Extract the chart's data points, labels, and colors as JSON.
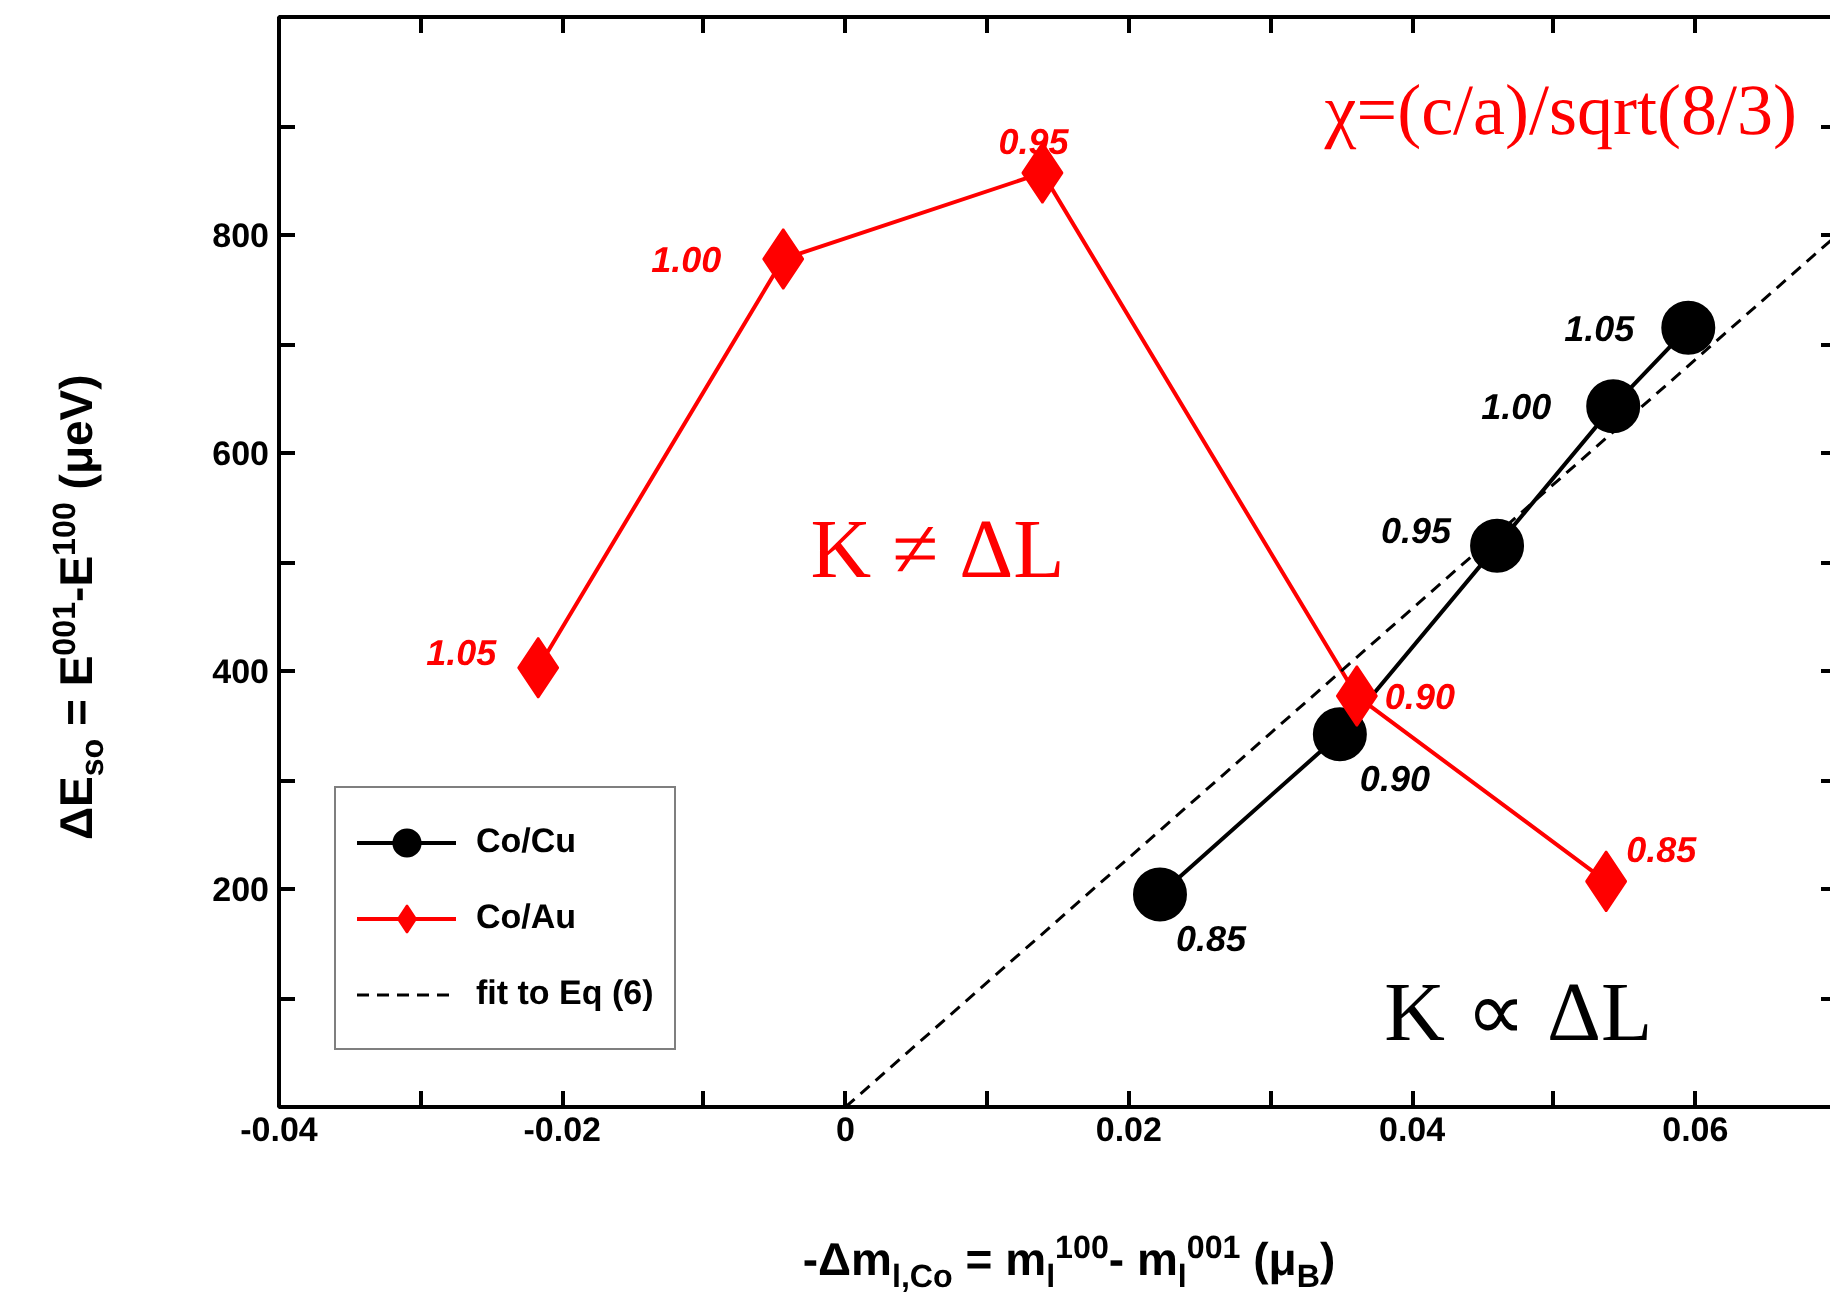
{
  "chart_data": {
    "type": "line",
    "xlabel": "-Δm$_{l,Co}$ = m$_{l}$$^{100}$- m$_{l}$$^{001}$ (μ$_{B}$)",
    "ylabel": "ΔE$_{so}$ = E$^{001}$-E$^{100}$ (μeV)",
    "xlim": [
      -0.04,
      0.07
    ],
    "xticks": [
      -0.04,
      {
        "value": -0.03,
        "label": null
      },
      -0.02,
      {
        "value": -0.01,
        "label": null
      },
      0,
      {
        "value": 0.01,
        "label": null
      },
      0.02,
      {
        "value": 0.03,
        "label": null
      },
      0.04,
      {
        "value": 0.05,
        "label": null
      },
      0.06
    ],
    "ylim": [
      0,
      1000
    ],
    "yticks": [
      {
        "value": 100,
        "label": null
      },
      200,
      {
        "value": 300,
        "label": null
      },
      400,
      {
        "value": 500,
        "label": null
      },
      600,
      {
        "value": 700,
        "label": null
      },
      800,
      {
        "value": 900,
        "label": null
      }
    ],
    "grid": false,
    "legend": "bottom left",
    "series": [
      {
        "name": "Co/Cu",
        "color": "#000000",
        "marker": "circle",
        "line_style": "solid",
        "x": [
          0.0222,
          0.0349,
          0.046,
          0.0542,
          0.0595
        ],
        "values": [
          195,
          342,
          515,
          643,
          715
        ]
      },
      {
        "name": "Co/Au",
        "color": "#ff0000",
        "marker": "diamond",
        "line_style": "solid",
        "x": [
          -0.0217,
          -0.0044,
          0.0139,
          0.0361,
          0.0537
        ],
        "values": [
          403,
          778,
          857,
          377,
          207
        ]
      },
      {
        "name": "fit to Eq (6)",
        "color": "#000000",
        "marker": "none",
        "line_style": "dashed",
        "x": [
          0,
          0.07
        ],
        "values": [
          0,
          800
        ]
      }
    ],
    "annotations": [
      "χ=(c/a)/sqrt(8/3)",
      "K ≠ ΔL",
      "K ∝ ΔL",
      {
        "text": "0.85",
        "x": 0.0222,
        "y": 195
      },
      {
        "text": "0.90",
        "x": 0.0349,
        "y": 342
      },
      {
        "text": "0.95",
        "x": 0.046,
        "y": 515
      },
      {
        "text": "1.00",
        "x": 0.0542,
        "y": 643
      },
      {
        "text": "1.05",
        "x": 0.0595,
        "y": 715
      },
      {
        "text": "1.05",
        "x": -0.0217,
        "y": 403
      },
      {
        "text": "1.00",
        "x": -0.0044,
        "y": 778
      },
      {
        "text": "0.95",
        "x": 0.0139,
        "y": 857
      },
      {
        "text": "0.90",
        "x": 0.0361,
        "y": 377
      },
      {
        "text": "0.85",
        "x": 0.0537,
        "y": 207
      }
    ]
  }
}
